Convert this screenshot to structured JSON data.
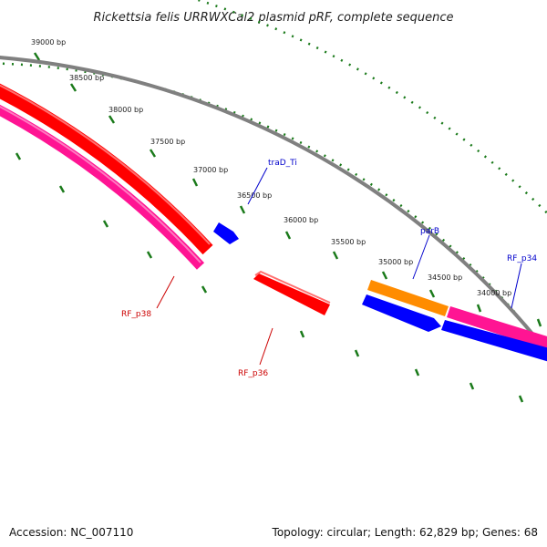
{
  "title": "Rickettsia felis URRWXCal2 plasmid pRF, complete sequence",
  "accession_text": "Accession: NC_007110",
  "summary_text": "Topology: circular; Length: 62,829 bp; Genes: 68",
  "ticks": [
    "39000 bp",
    "38500 bp",
    "38000 bp",
    "37500 bp",
    "37000 bp",
    "36500 bp",
    "36000 bp",
    "35500 bp",
    "35000 bp",
    "34500 bp",
    "34000 bp"
  ],
  "genes": [
    {
      "name": "traD_Ti",
      "color": "#0000cc"
    },
    {
      "name": "parB",
      "color": "#0000cc"
    },
    {
      "name": "RF_p34",
      "color": "#0000cc"
    },
    {
      "name": "RF_p38",
      "color": "#cc0000"
    },
    {
      "name": "RF_p36",
      "color": "#cc0000"
    }
  ],
  "colors": {
    "backbone": "#808080",
    "tick": "#1a7a1a",
    "red_feature": "#ff0000",
    "pink_feature": "#ff1493",
    "blue_feature": "#0000ff",
    "orange_feature": "#ff8c00"
  }
}
